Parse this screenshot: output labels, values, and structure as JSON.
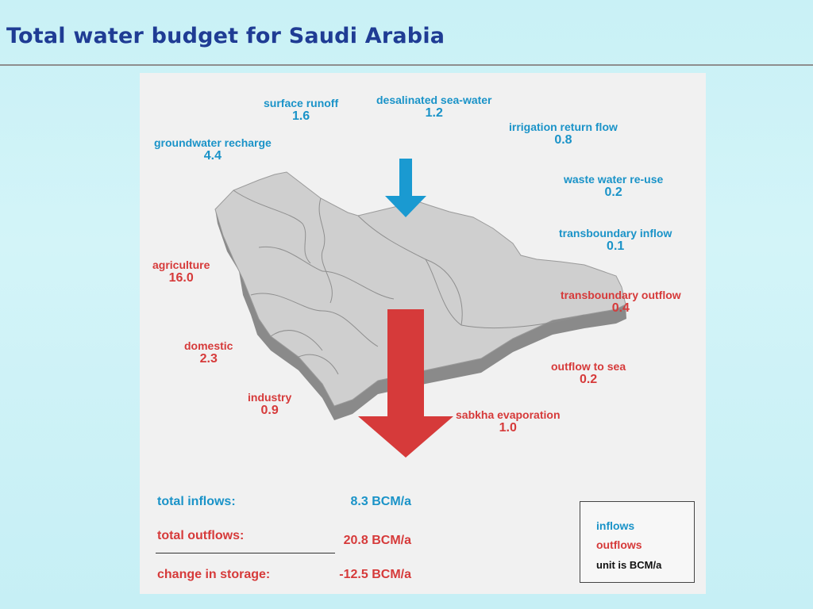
{
  "title": "Total water budget for Saudi Arabia",
  "colors": {
    "inflow": "#1a93c8",
    "outflow": "#d63a3a",
    "title": "#1f3c94",
    "map": "#cfcfcf"
  },
  "inflows": {
    "surface_runoff": {
      "name": "surface runoff",
      "value": "1.6"
    },
    "desalinated": {
      "name": "desalinated sea-water",
      "value": "1.2"
    },
    "groundwater": {
      "name": "groundwater recharge",
      "value": "4.4"
    },
    "irrigation": {
      "name": "irrigation return flow",
      "value": "0.8"
    },
    "wastewater": {
      "name": "waste water re-use",
      "value": "0.2"
    },
    "transboundary_in": {
      "name": "transboundary  inflow",
      "value": "0.1"
    }
  },
  "outflows": {
    "agriculture": {
      "name": "agriculture",
      "value": "16.0"
    },
    "transboundary_out": {
      "name": "transboundary  outflow",
      "value": "0.4"
    },
    "domestic": {
      "name": "domestic",
      "value": "2.3"
    },
    "outflow_sea": {
      "name": "outflow to sea",
      "value": "0.2"
    },
    "industry": {
      "name": "industry",
      "value": "0.9"
    },
    "sabkha": {
      "name": "sabkha evaporation",
      "value": "1.0"
    }
  },
  "totals": {
    "inflows_label": "total inflows:",
    "inflows_value": "8.3 BCM/a",
    "outflows_label": "total outflows:",
    "outflows_value": "20.8 BCM/a",
    "storage_label": "change in storage:",
    "storage_value": "-12.5 BCM/a"
  },
  "legend": {
    "inflows": "inflows",
    "outflows": "outflows",
    "unit": "unit is BCM/a"
  }
}
